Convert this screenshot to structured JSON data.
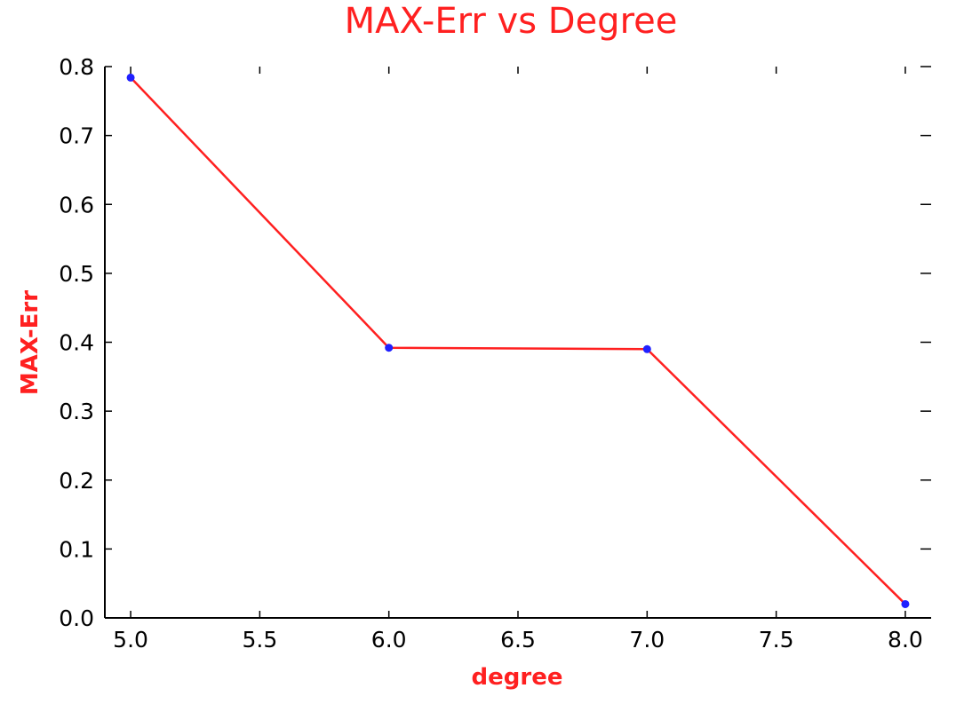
{
  "colors": {
    "accent": "#ff2020",
    "marker": "#2020ff",
    "axis": "#000000"
  },
  "chart_data": {
    "type": "line",
    "title": "MAX-Err vs Degree",
    "xlabel": "degree",
    "ylabel": "MAX-Err",
    "xlim": [
      4.9,
      8.1
    ],
    "ylim": [
      0.0,
      0.8
    ],
    "xticks": [
      5.0,
      5.5,
      6.0,
      6.5,
      7.0,
      7.5,
      8.0
    ],
    "xtick_labels": [
      "5.0",
      "5.5",
      "6.0",
      "6.5",
      "7.0",
      "7.5",
      "8.0"
    ],
    "yticks": [
      0.0,
      0.1,
      0.2,
      0.3,
      0.4,
      0.5,
      0.6,
      0.7,
      0.8
    ],
    "ytick_labels": [
      "0.0",
      "0.1",
      "0.2",
      "0.3",
      "0.4",
      "0.5",
      "0.6",
      "0.7",
      "0.8"
    ],
    "grid": false,
    "series": [
      {
        "name": "MAX-Err",
        "x": [
          5.0,
          6.0,
          7.0,
          8.0
        ],
        "y": [
          0.784,
          0.392,
          0.39,
          0.02
        ]
      }
    ]
  }
}
